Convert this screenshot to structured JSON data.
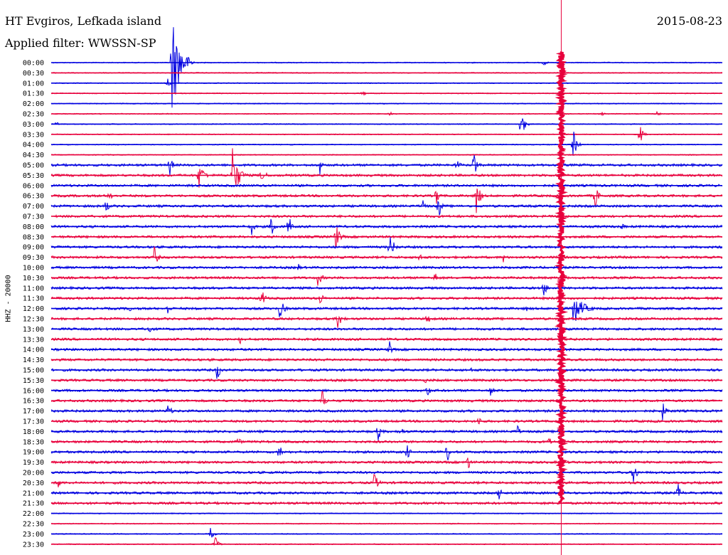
{
  "header": {
    "station": "HT Evgiros, Lefkada island",
    "filter": "Applied filter: WWSSN-SP",
    "date": "2015-08-23"
  },
  "colors": {
    "trace_a": "#0000e0",
    "trace_b": "#e8003c",
    "marker": "#e8003c"
  },
  "chart_data": {
    "type": "line",
    "title": "",
    "ylabel": "HHZ - 20000",
    "rows": [
      "00:00",
      "00:30",
      "01:00",
      "01:30",
      "02:00",
      "02:30",
      "03:00",
      "03:30",
      "04:00",
      "04:30",
      "05:00",
      "05:30",
      "06:00",
      "06:30",
      "07:00",
      "07:30",
      "08:00",
      "08:30",
      "09:00",
      "09:30",
      "10:00",
      "10:30",
      "11:00",
      "11:30",
      "12:00",
      "12:30",
      "13:00",
      "13:30",
      "14:00",
      "14:30",
      "15:00",
      "15:30",
      "16:00",
      "16:30",
      "17:00",
      "17:30",
      "18:00",
      "18:30",
      "19:00",
      "19:30",
      "20:00",
      "20:30",
      "21:00",
      "21:30",
      "22:00",
      "22:30",
      "23:00",
      "23:30"
    ],
    "x_range_minutes": [
      0,
      30
    ],
    "marker_minute": 22.8,
    "events": [
      {
        "row": 0,
        "minute": 5.4,
        "amp": 75,
        "dur": 1.0
      },
      {
        "row": 0,
        "minute": 22.0,
        "amp": 8,
        "dur": 0.3
      },
      {
        "row": 2,
        "minute": 5.2,
        "amp": 10,
        "dur": 0.3
      },
      {
        "row": 3,
        "minute": 13.9,
        "amp": 8,
        "dur": 0.3
      },
      {
        "row": 5,
        "minute": 15.1,
        "amp": 6,
        "dur": 0.3
      },
      {
        "row": 5,
        "minute": 24.6,
        "amp": 7,
        "dur": 0.3
      },
      {
        "row": 5,
        "minute": 27.0,
        "amp": 5,
        "dur": 0.5
      },
      {
        "row": 6,
        "minute": 0.2,
        "amp": 6,
        "dur": 0.3
      },
      {
        "row": 6,
        "minute": 21.0,
        "amp": 25,
        "dur": 0.4
      },
      {
        "row": 7,
        "minute": 26.3,
        "amp": 16,
        "dur": 0.4
      },
      {
        "row": 8,
        "minute": 23.3,
        "amp": 28,
        "dur": 0.4
      },
      {
        "row": 10,
        "minute": 5.3,
        "amp": 20,
        "dur": 0.3
      },
      {
        "row": 10,
        "minute": 12.0,
        "amp": 15,
        "dur": 0.3
      },
      {
        "row": 10,
        "minute": 18.1,
        "amp": 12,
        "dur": 0.4
      },
      {
        "row": 10,
        "minute": 18.9,
        "amp": 30,
        "dur": 0.3
      },
      {
        "row": 11,
        "minute": 6.6,
        "amp": 22,
        "dur": 0.6
      },
      {
        "row": 11,
        "minute": 8.1,
        "amp": 42,
        "dur": 0.7
      },
      {
        "row": 11,
        "minute": 9.4,
        "amp": 18,
        "dur": 0.4
      },
      {
        "row": 13,
        "minute": 2.6,
        "amp": 14,
        "dur": 0.3
      },
      {
        "row": 13,
        "minute": 17.2,
        "amp": 20,
        "dur": 0.3
      },
      {
        "row": 13,
        "minute": 19.0,
        "amp": 30,
        "dur": 0.4
      },
      {
        "row": 13,
        "minute": 24.3,
        "amp": 20,
        "dur": 0.4
      },
      {
        "row": 14,
        "minute": 2.4,
        "amp": 14,
        "dur": 0.4
      },
      {
        "row": 14,
        "minute": 16.6,
        "amp": 14,
        "dur": 0.3
      },
      {
        "row": 14,
        "minute": 17.3,
        "amp": 25,
        "dur": 0.3
      },
      {
        "row": 16,
        "minute": 8.9,
        "amp": 24,
        "dur": 0.3
      },
      {
        "row": 16,
        "minute": 9.8,
        "amp": 22,
        "dur": 0.4
      },
      {
        "row": 16,
        "minute": 10.6,
        "amp": 25,
        "dur": 0.3
      },
      {
        "row": 16,
        "minute": 25.5,
        "amp": 8,
        "dur": 0.3
      },
      {
        "row": 17,
        "minute": 12.7,
        "amp": 22,
        "dur": 0.5
      },
      {
        "row": 18,
        "minute": 15.1,
        "amp": 20,
        "dur": 0.6
      },
      {
        "row": 19,
        "minute": 4.6,
        "amp": 18,
        "dur": 0.4
      },
      {
        "row": 19,
        "minute": 16.4,
        "amp": 14,
        "dur": 0.3
      },
      {
        "row": 19,
        "minute": 20.2,
        "amp": 8,
        "dur": 0.4
      },
      {
        "row": 20,
        "minute": 11.0,
        "amp": 10,
        "dur": 0.3
      },
      {
        "row": 21,
        "minute": 11.9,
        "amp": 14,
        "dur": 0.5
      },
      {
        "row": 21,
        "minute": 17.1,
        "amp": 18,
        "dur": 0.3
      },
      {
        "row": 22,
        "minute": 22.0,
        "amp": 14,
        "dur": 0.4
      },
      {
        "row": 23,
        "minute": 9.4,
        "amp": 16,
        "dur": 0.4
      },
      {
        "row": 23,
        "minute": 12.0,
        "amp": 12,
        "dur": 0.4
      },
      {
        "row": 24,
        "minute": 3.5,
        "amp": 10,
        "dur": 0.3
      },
      {
        "row": 24,
        "minute": 5.2,
        "amp": 12,
        "dur": 0.3
      },
      {
        "row": 24,
        "minute": 10.2,
        "amp": 18,
        "dur": 0.5
      },
      {
        "row": 24,
        "minute": 21.2,
        "amp": 8,
        "dur": 0.3
      },
      {
        "row": 24,
        "minute": 23.3,
        "amp": 26,
        "dur": 1.2
      },
      {
        "row": 25,
        "minute": 12.8,
        "amp": 14,
        "dur": 0.6
      },
      {
        "row": 25,
        "minute": 16.8,
        "amp": 12,
        "dur": 0.5
      },
      {
        "row": 26,
        "minute": 4.3,
        "amp": 14,
        "dur": 0.4
      },
      {
        "row": 27,
        "minute": 8.4,
        "amp": 10,
        "dur": 0.3
      },
      {
        "row": 28,
        "minute": 15.1,
        "amp": 16,
        "dur": 0.3
      },
      {
        "row": 28,
        "minute": 25.1,
        "amp": 6,
        "dur": 0.3
      },
      {
        "row": 30,
        "minute": 7.4,
        "amp": 18,
        "dur": 0.4
      },
      {
        "row": 30,
        "minute": 18.7,
        "amp": 8,
        "dur": 0.3
      },
      {
        "row": 31,
        "minute": 16.7,
        "amp": 6,
        "dur": 0.3
      },
      {
        "row": 32,
        "minute": 16.8,
        "amp": 14,
        "dur": 0.3
      },
      {
        "row": 32,
        "minute": 19.6,
        "amp": 10,
        "dur": 0.4
      },
      {
        "row": 33,
        "minute": 12.1,
        "amp": 18,
        "dur": 0.4
      },
      {
        "row": 34,
        "minute": 5.2,
        "amp": 10,
        "dur": 0.5
      },
      {
        "row": 34,
        "minute": 27.3,
        "amp": 16,
        "dur": 0.5
      },
      {
        "row": 35,
        "minute": 19.1,
        "amp": 14,
        "dur": 0.3
      },
      {
        "row": 36,
        "minute": 14.6,
        "amp": 16,
        "dur": 0.4
      },
      {
        "row": 36,
        "minute": 15.6,
        "amp": 14,
        "dur": 0.3
      },
      {
        "row": 36,
        "minute": 20.8,
        "amp": 16,
        "dur": 0.3
      },
      {
        "row": 36,
        "minute": 22.7,
        "amp": 12,
        "dur": 0.3
      },
      {
        "row": 37,
        "minute": 8.3,
        "amp": 8,
        "dur": 0.5
      },
      {
        "row": 37,
        "minute": 22.2,
        "amp": 10,
        "dur": 0.4
      },
      {
        "row": 38,
        "minute": 10.2,
        "amp": 18,
        "dur": 0.3
      },
      {
        "row": 38,
        "minute": 15.9,
        "amp": 16,
        "dur": 0.3
      },
      {
        "row": 38,
        "minute": 17.7,
        "amp": 18,
        "dur": 0.3
      },
      {
        "row": 39,
        "minute": 18.6,
        "amp": 18,
        "dur": 0.3
      },
      {
        "row": 40,
        "minute": 26.0,
        "amp": 22,
        "dur": 0.4
      },
      {
        "row": 41,
        "minute": 0.3,
        "amp": 14,
        "dur": 0.3
      },
      {
        "row": 41,
        "minute": 14.4,
        "amp": 18,
        "dur": 0.5
      },
      {
        "row": 42,
        "minute": 20.0,
        "amp": 14,
        "dur": 0.4
      },
      {
        "row": 42,
        "minute": 28.0,
        "amp": 16,
        "dur": 0.4
      },
      {
        "row": 46,
        "minute": 7.1,
        "amp": 10,
        "dur": 0.4
      },
      {
        "row": 47,
        "minute": 7.3,
        "amp": 14,
        "dur": 0.4
      }
    ]
  }
}
